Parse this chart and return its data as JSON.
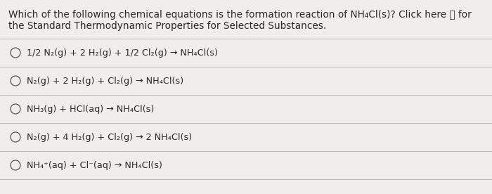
{
  "bg_color": "#d8d5d0",
  "panel_color": "#f0eeeb",
  "title_line1": "Which of the following chemical equations is the formation reaction of NH₄Cl(s)? Click here ⭳ for",
  "title_line2": "the Standard Thermodynamic Properties for Selected Substances.",
  "options": [
    "1/2 N₂(g) + 2 H₂(g) + 1/2 Cl₂(g) → NH₄Cl(s)",
    "N₂(g) + 2 H₂(g) + Cl₂(g) → NH₄Cl(s)",
    "NH₃(g) + HCl(aq) → NH₄Cl(s)",
    "N₂(g) + 4 H₂(g) + Cl₂(g) → 2 NH₄Cl(s)",
    "NH₄⁺(aq) + Cl⁻(aq) → NH₄Cl(s)"
  ],
  "here_text": "here",
  "text_color": "#2a2a2a",
  "line_color": "#b8b5b0",
  "circle_color": "#555555",
  "font_size_title": 9.8,
  "font_size_option": 9.2,
  "figwidth": 7.0,
  "figheight": 2.76,
  "dpi": 100
}
